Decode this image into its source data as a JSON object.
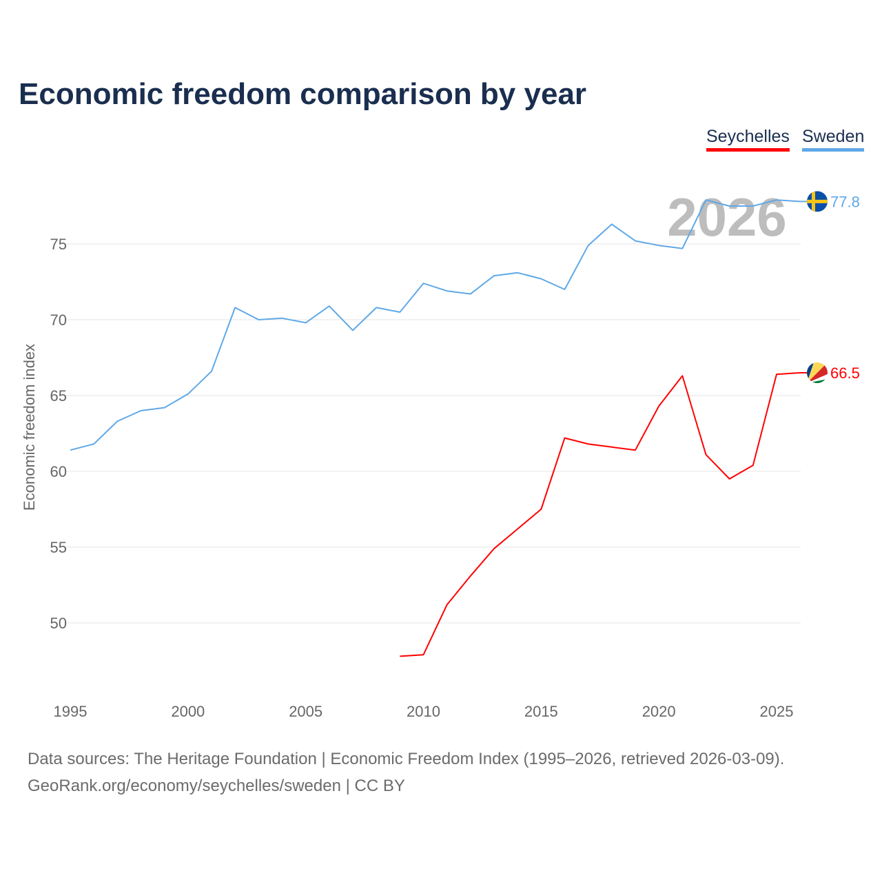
{
  "title": "Economic freedom comparison by year",
  "chart_data": {
    "type": "line",
    "title": "Economic freedom comparison by year",
    "xlabel": "",
    "ylabel": "Economic freedom index",
    "xlim": [
      1995,
      2026
    ],
    "ylim": [
      45.5,
      79
    ],
    "x_ticks": [
      "1995",
      "2000",
      "2005",
      "2010",
      "2015",
      "2020",
      "2025"
    ],
    "y_ticks": [
      "50",
      "55",
      "60",
      "65",
      "70",
      "75"
    ],
    "grid": true,
    "legend_position": "top-right",
    "watermark_year": "2026",
    "series": [
      {
        "name": "Seychelles",
        "color": "#ff0000",
        "end_label": "66.5",
        "x": [
          2009,
          2010,
          2011,
          2012,
          2013,
          2014,
          2015,
          2016,
          2017,
          2018,
          2019,
          2020,
          2021,
          2022,
          2023,
          2024,
          2025,
          2026
        ],
        "values": [
          47.8,
          47.9,
          51.2,
          53.1,
          54.9,
          56.2,
          57.5,
          62.2,
          61.8,
          61.6,
          61.4,
          64.3,
          66.3,
          61.1,
          59.5,
          60.4,
          66.4,
          66.5
        ]
      },
      {
        "name": "Sweden",
        "color": "#5fa8e8",
        "end_label": "77.8",
        "x": [
          1995,
          1996,
          1997,
          1998,
          1999,
          2000,
          2001,
          2002,
          2003,
          2004,
          2005,
          2006,
          2007,
          2008,
          2009,
          2010,
          2011,
          2012,
          2013,
          2014,
          2015,
          2016,
          2017,
          2018,
          2019,
          2020,
          2021,
          2022,
          2023,
          2024,
          2025,
          2026
        ],
        "values": [
          61.4,
          61.8,
          63.3,
          64.0,
          64.2,
          65.1,
          66.6,
          70.8,
          70.0,
          70.1,
          69.8,
          70.9,
          69.3,
          70.8,
          70.5,
          72.4,
          71.9,
          71.7,
          72.9,
          73.1,
          72.7,
          72.0,
          74.9,
          76.3,
          75.2,
          74.9,
          74.7,
          77.9,
          77.5,
          77.5,
          77.9,
          77.8
        ]
      }
    ]
  },
  "footer": {
    "sources": "Data sources: The Heritage Foundation | Economic Freedom Index (1995–2026, retrieved 2026-03-09).",
    "credit": "GeoRank.org/economy/seychelles/sweden | CC BY"
  }
}
